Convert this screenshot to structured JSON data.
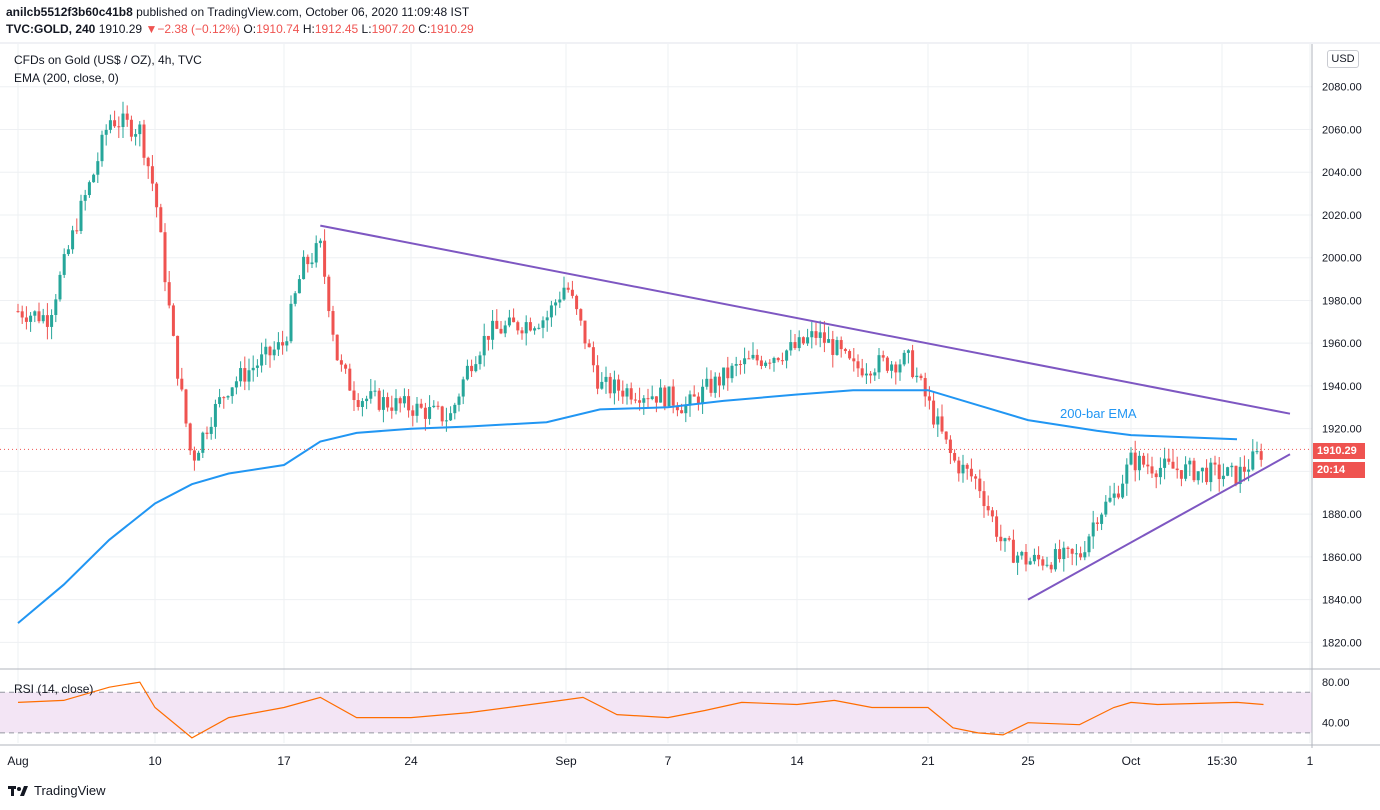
{
  "header": {
    "user": "anilcb5512f3b60c41b8",
    "published_text": "published on TradingView.com, October 06, 2020 11:09:48 IST",
    "symbol": "TVC:GOLD, 240",
    "last": "1910.29",
    "change_arrow": "▼",
    "change": "−2.38 (−0.12%)",
    "o_label": "O:",
    "o_value": "1910.74",
    "h_label": "H:",
    "h_value": "1912.45",
    "l_label": "L:",
    "l_value": "1907.20",
    "c_label": "C:",
    "c_value": "1910.29"
  },
  "legend": {
    "instrument": "CFDs on Gold (US$ / OZ), 4h, TVC",
    "ema": "EMA (200, close, 0)",
    "rsi": "RSI (14, close)"
  },
  "price_axis": {
    "currency": "USD",
    "last_price_tag": "1910.29",
    "countdown_tag": "20:14"
  },
  "annotations": {
    "ema_label": "200-bar EMA"
  },
  "branding": {
    "name": "TradingView",
    "icon": "tradingview-logo-icon"
  },
  "colors": {
    "up": "#26a69a",
    "down": "#ef5350",
    "ema": "#2196f3",
    "trendline": "#7e57c2",
    "rsi_line": "#ff6d00",
    "rsi_band": "#f3e5f5"
  },
  "chart_data": [
    {
      "type": "candlestick",
      "title": "CFDs on Gold (US$ / OZ), 4h, TVC",
      "x_ticks": [
        "Aug",
        "10",
        "17",
        "24",
        "Sep",
        "7",
        "14",
        "21",
        "25",
        "Oct",
        "15:30",
        "1"
      ],
      "y_ticks": [
        1820,
        1840,
        1860,
        1880,
        1900,
        1920,
        1940,
        1960,
        1980,
        2000,
        2020,
        2040,
        2060,
        2080
      ],
      "ylim": [
        1808,
        2100
      ],
      "last_price": 1910.29,
      "series": [
        {
          "name": "200-bar EMA",
          "type": "line",
          "x": [
            "Aug 1",
            "Aug 4",
            "Aug 7",
            "Aug 10",
            "Aug 12",
            "Aug 14",
            "Aug 17",
            "Aug 19",
            "Aug 21",
            "Aug 24",
            "Aug 27",
            "Aug 31",
            "Sep 3",
            "Sep 7",
            "Sep 10",
            "Sep 14",
            "Sep 17",
            "Sep 21",
            "Sep 23",
            "Sep 25",
            "Sep 29",
            "Oct 1",
            "Oct 5"
          ],
          "values": [
            1829,
            1847,
            1868,
            1885,
            1894,
            1899,
            1903,
            1914,
            1918,
            1920,
            1921,
            1923,
            1929,
            1930,
            1933,
            1936,
            1938,
            1938,
            1931,
            1924,
            1919,
            1917,
            1915
          ]
        },
        {
          "name": "Resistance trendline",
          "type": "line",
          "x": [
            "Aug 19",
            "Oct 8"
          ],
          "values": [
            2015,
            1927
          ]
        },
        {
          "name": "Support trendline",
          "type": "line",
          "x": [
            "Sep 25",
            "Oct 7"
          ],
          "values": [
            1840,
            1908
          ]
        }
      ],
      "price_path": {
        "x": [
          "Aug 1",
          "Aug 3",
          "Aug 5",
          "Aug 6",
          "Aug 7",
          "Aug 9",
          "Aug 10",
          "Aug 11",
          "Aug 12",
          "Aug 13",
          "Aug 14",
          "Aug 17",
          "Aug 18",
          "Aug 19",
          "Aug 20",
          "Aug 21",
          "Aug 24",
          "Aug 26",
          "Aug 27",
          "Aug 28",
          "Aug 31",
          "Sep 1",
          "Sep 2",
          "Sep 3",
          "Sep 7",
          "Sep 8",
          "Sep 9",
          "Sep 11",
          "Sep 14",
          "Sep 15",
          "Sep 16",
          "Sep 17",
          "Sep 18",
          "Sep 20",
          "Sep 21",
          "Sep 22",
          "Sep 23",
          "Sep 24",
          "Sep 25",
          "Sep 28",
          "Sep 29",
          "Sep 30",
          "Oct 1",
          "Oct 2",
          "Oct 5",
          "Oct 6"
        ],
        "close": [
          1975,
          1972,
          2020,
          2040,
          2065,
          2060,
          2030,
          1960,
          1905,
          1925,
          1940,
          1960,
          1995,
          2005,
          1950,
          1935,
          1930,
          1925,
          1950,
          1965,
          1972,
          1988,
          1965,
          1940,
          1935,
          1930,
          1938,
          1950,
          1958,
          1964,
          1958,
          1948,
          1950,
          1952,
          1932,
          1905,
          1895,
          1865,
          1858,
          1860,
          1880,
          1888,
          1905,
          1902,
          1898,
          1910
        ]
      }
    },
    {
      "type": "line",
      "title": "RSI (14, close)",
      "y_ticks": [
        40,
        80
      ],
      "ylim": [
        20,
        90
      ],
      "band": [
        30,
        70
      ],
      "series": [
        {
          "name": "RSI (14, close)",
          "x": [
            "Aug 1",
            "Aug 4",
            "Aug 7",
            "Aug 9",
            "Aug 10",
            "Aug 12",
            "Aug 14",
            "Aug 17",
            "Aug 19",
            "Aug 21",
            "Aug 24",
            "Aug 27",
            "Aug 31",
            "Sep 2",
            "Sep 4",
            "Sep 7",
            "Sep 9",
            "Sep 11",
            "Sep 14",
            "Sep 16",
            "Sep 18",
            "Sep 21",
            "Sep 22",
            "Sep 23",
            "Sep 24",
            "Sep 25",
            "Sep 28",
            "Sep 30",
            "Oct 1",
            "Oct 2",
            "Oct 5",
            "Oct 6"
          ],
          "values": [
            60,
            62,
            75,
            80,
            55,
            25,
            45,
            55,
            65,
            45,
            45,
            50,
            60,
            65,
            48,
            45,
            52,
            60,
            58,
            62,
            55,
            55,
            35,
            30,
            28,
            40,
            38,
            55,
            60,
            58,
            60,
            58
          ]
        }
      ]
    }
  ]
}
